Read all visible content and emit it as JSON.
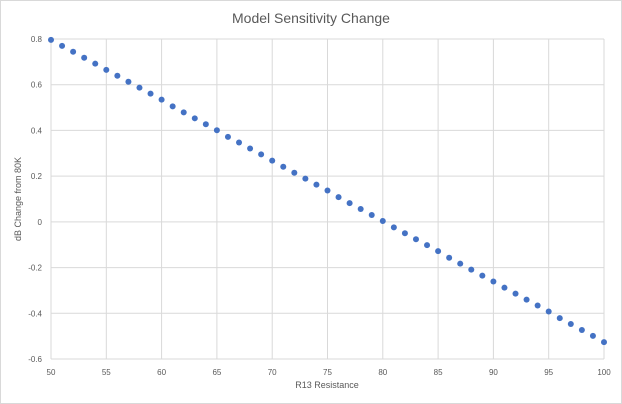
{
  "chart_data": {
    "type": "scatter",
    "title": "Model Sensitivity Change",
    "xlabel": "R13 Resistance",
    "ylabel": "dB Change from 80K",
    "xlim": [
      50,
      100
    ],
    "ylim": [
      -0.6,
      0.8
    ],
    "x_ticks": [
      "50",
      "55",
      "60",
      "65",
      "70",
      "75",
      "80",
      "85",
      "90",
      "95",
      "100"
    ],
    "y_ticks": [
      "-0.6",
      "-0.4",
      "-0.2",
      "0",
      "0.2",
      "0.4",
      "0.6",
      "0.8"
    ],
    "grid": true,
    "legend": "none",
    "series": [
      {
        "x": [
          50,
          51,
          52,
          53,
          54,
          55,
          56,
          57,
          58,
          59,
          60,
          61,
          62,
          63,
          64,
          65,
          66,
          67,
          68,
          69,
          70,
          71,
          72,
          73,
          74,
          75,
          76,
          77,
          78,
          79,
          80,
          81,
          82,
          83,
          84,
          85,
          86,
          87,
          88,
          89,
          90,
          91,
          92,
          93,
          94,
          95,
          96,
          97,
          98,
          99,
          100
        ],
        "y": [
          0.796,
          0.77,
          0.744,
          0.718,
          0.692,
          0.665,
          0.639,
          0.613,
          0.587,
          0.561,
          0.535,
          0.505,
          0.479,
          0.453,
          0.427,
          0.401,
          0.372,
          0.347,
          0.321,
          0.295,
          0.268,
          0.241,
          0.215,
          0.189,
          0.163,
          0.137,
          0.108,
          0.082,
          0.056,
          0.03,
          0.004,
          -0.024,
          -0.05,
          -0.076,
          -0.102,
          -0.128,
          -0.157,
          -0.183,
          -0.209,
          -0.235,
          -0.261,
          -0.288,
          -0.314,
          -0.34,
          -0.366,
          -0.392,
          -0.421,
          -0.447,
          -0.473,
          -0.499,
          -0.526
        ]
      }
    ],
    "colors": {
      "marker": "#4472C4",
      "grid": "#d9d9d9",
      "text": "#595959"
    }
  }
}
